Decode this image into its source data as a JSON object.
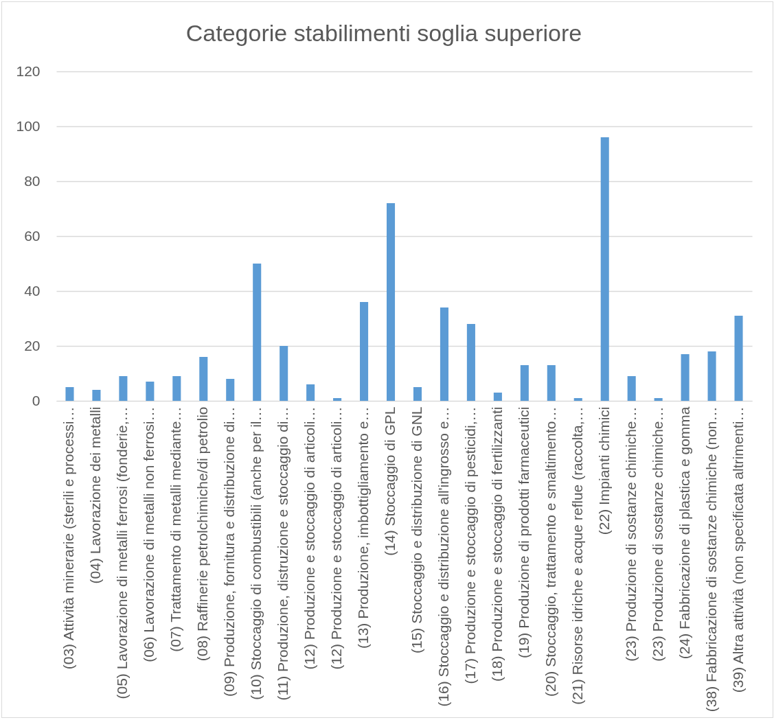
{
  "chart_data": {
    "type": "bar",
    "title": "Categorie stabilimenti soglia superiore",
    "categories": [
      "(03) Attività minerarie (sterili e processi…",
      "(04) Lavorazione dei metalli",
      "(05) Lavorazione di metalli ferrosi (fonderie,…",
      "(06) Lavorazione di metalli non ferrosi…",
      "(07) Trattamento di metalli mediante…",
      "(08) Raffinerie petrolchimiche/di petrolio",
      "(09) Produzione, fornitura e distribuzione di…",
      "(10) Stoccaggio di combustibili (anche per il…",
      "(11) Produzione, distruzione e stoccaggio di…",
      "(12) Produzione e stoccaggio di articoli…",
      "(12) Produzione e stoccaggio di articoli…",
      "(13) Produzione, imbottigliamento e…",
      "(14) Stoccaggio di GPL",
      "(15) Stoccaggio e distribuzione di GNL",
      "(16) Stoccaggio e distribuzione all'ingrosso e…",
      "(17) Produzione e stoccaggio di pesticidi,…",
      "(18) Produzione e stoccaggio di fertilizzanti",
      "(19) Produzione di prodotti farmaceutici",
      "(20) Stoccaggio, trattamento e smaltimento…",
      "(21) Risorse idriche e acque reflue (raccolta,…",
      "(22) Impianti chimici",
      "(23) Produzione di sostanze chimiche…",
      "(23) Produzione di sostanze chimiche…",
      "(24) Fabbricazione di plastica e gomma",
      "(38) Fabbricazione di sostanze chimiche (non…",
      "(39) Altra attività (non specificata altrimenti…"
    ],
    "values": [
      5,
      4,
      9,
      7,
      9,
      16,
      8,
      50,
      20,
      6,
      1,
      36,
      72,
      5,
      34,
      28,
      3,
      13,
      13,
      1,
      96,
      9,
      1,
      17,
      18,
      31
    ],
    "color": "#5b9bd5",
    "ylim": [
      0,
      120
    ],
    "yticks": [
      0,
      20,
      40,
      60,
      80,
      100,
      120
    ],
    "grid": "y"
  }
}
